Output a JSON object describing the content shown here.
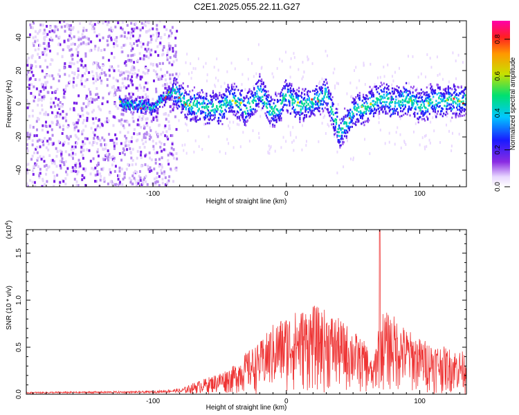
{
  "title": "C2E1.2025.055.22.11.G27",
  "chart_data": [
    {
      "type": "heatmap",
      "xlabel": "Height of straight line (km)",
      "ylabel": "Frequency (Hz)",
      "xlim": [
        -195,
        135
      ],
      "ylim": [
        -50,
        50
      ],
      "xticks": [
        -100,
        0,
        100
      ],
      "yticks": [
        -40,
        -20,
        0,
        20,
        40
      ],
      "colorbar": {
        "label": "Normalized spectral amplitude",
        "range": [
          0,
          0.9
        ],
        "ticks": [
          "0.0",
          "0.2",
          "0.4",
          "0.6",
          "0.8"
        ]
      },
      "ridge": {
        "description_values_x": [
          -120,
          -100,
          -85,
          -75,
          -60,
          -50,
          -40,
          -30,
          -20,
          -10,
          0,
          10,
          20,
          30,
          40,
          50,
          60,
          70,
          80,
          90,
          100,
          110,
          120,
          130
        ],
        "description_values_y": [
          0,
          -2,
          8,
          0,
          -2,
          -3,
          3,
          -4,
          8,
          -6,
          5,
          -1,
          2,
          5,
          -18,
          -5,
          -2,
          4,
          0,
          3,
          -2,
          2,
          1,
          2
        ]
      }
    },
    {
      "type": "line",
      "xlabel": "Height of straight line (km)",
      "ylabel": "SNR (10 * v/v)",
      "yunit_label": "(x10",
      "yunit_exp": "4",
      "yunit_close": ")",
      "xlim": [
        -195,
        135
      ],
      "ylim": [
        0,
        1.75
      ],
      "xticks": [
        -100,
        0,
        100
      ],
      "yticks": [
        "0.0",
        "0.5",
        "1.0",
        "1.5"
      ],
      "series_color": "#ee3333",
      "envelope": {
        "x": [
          -195,
          -100,
          -80,
          -70,
          -55,
          -40,
          -30,
          -20,
          -10,
          0,
          10,
          20,
          30,
          40,
          50,
          55,
          60,
          65,
          70,
          80,
          90,
          100,
          110,
          120,
          135
        ],
        "y": [
          0.02,
          0.03,
          0.05,
          0.12,
          0.2,
          0.3,
          0.45,
          0.55,
          0.75,
          0.85,
          0.9,
          0.95,
          0.9,
          0.8,
          0.7,
          0.6,
          0.55,
          0.3,
          0.9,
          0.85,
          0.7,
          0.6,
          0.55,
          0.5,
          0.45
        ]
      },
      "peak": {
        "x": 70,
        "y": 1.75
      }
    }
  ]
}
